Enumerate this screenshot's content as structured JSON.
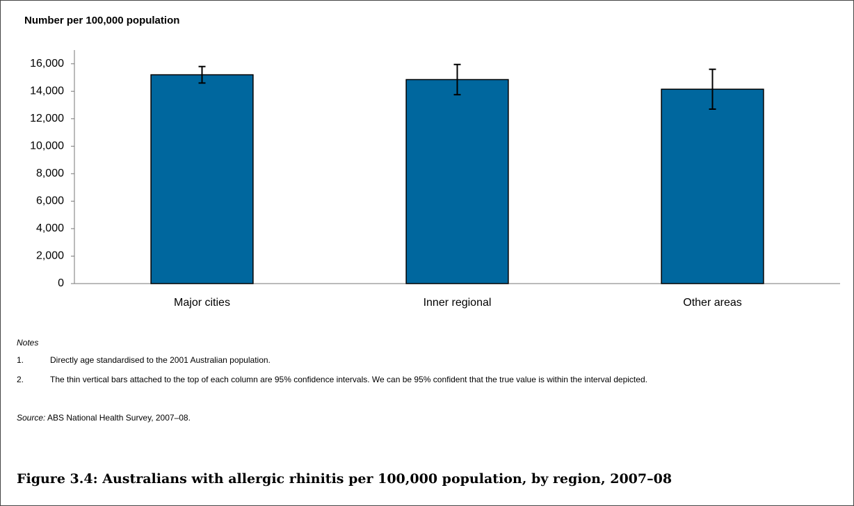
{
  "chart_data": {
    "type": "bar",
    "title": "Number per 100,000 population",
    "categories": [
      "Major cities",
      "Inner regional",
      "Other areas"
    ],
    "values": [
      15200,
      14850,
      14150
    ],
    "errors": [
      600,
      1100,
      1450
    ],
    "color": "#00679e",
    "ylim": [
      0,
      17000
    ],
    "yticks": [
      0,
      {
        "value": 2000,
        "label": "2,000"
      },
      {
        "value": 4000,
        "label": "4,000"
      },
      {
        "value": 6000,
        "label": "6,000"
      },
      {
        "value": 8000,
        "label": "8,000"
      },
      {
        "value": 10000,
        "label": "10,000"
      },
      {
        "value": 12000,
        "label": "12,000"
      },
      {
        "value": 14000,
        "label": "14,000"
      },
      {
        "value": 16000,
        "label": "16,000"
      }
    ],
    "grid": false
  },
  "notes": {
    "heading": "Notes",
    "items": [
      {
        "number": "1.",
        "text": "Directly age standardised to the 2001 Australian population."
      },
      {
        "number": "2.",
        "text": "The thin vertical bars attached to the top of each column are 95% confidence intervals. We can be 95% confident that the true value is within the interval depicted."
      }
    ]
  },
  "source": {
    "label": "Source:",
    "text": "ABS National Health Survey, 2007–08."
  },
  "caption": "Figure 3.4: Australians with allergic rhinitis per 100,000 population, by region, 2007–08"
}
